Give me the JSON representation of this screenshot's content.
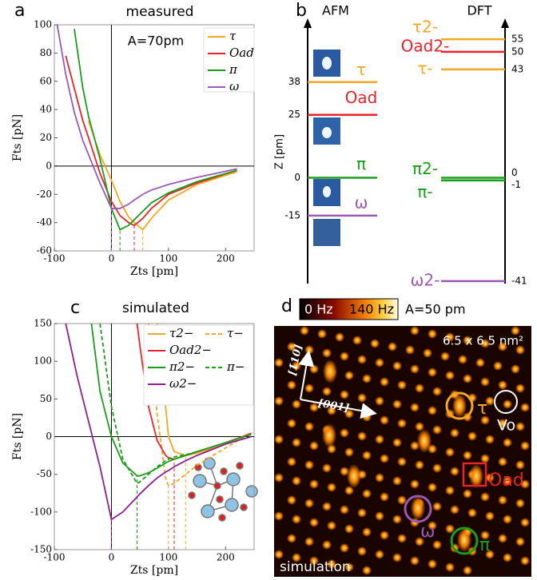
{
  "chart_data": [
    {
      "type": "line",
      "label": "a",
      "title": "measured",
      "annotation": "A=70pm",
      "xlabel": "Zts [pm]",
      "ylabel": "Fts [pN]",
      "x": [
        -95,
        -80,
        -65,
        -50,
        -40,
        -20,
        0,
        15,
        30,
        40,
        55,
        70,
        100,
        150,
        220
      ],
      "series": [
        {
          "name": "τ",
          "color": "#f5a623",
          "dash": false,
          "values": [
            null,
            null,
            null,
            null,
            32,
            8,
            -10,
            -25,
            -36,
            -40,
            -45,
            -37,
            -24,
            -13,
            -4
          ]
        },
        {
          "name": "Oad",
          "color": "#e8232a",
          "dash": false,
          "values": [
            null,
            78,
            55,
            32,
            20,
            -5,
            -25,
            -35,
            -40,
            -42,
            -37,
            -30,
            -20,
            -12,
            -3
          ]
        },
        {
          "name": "π",
          "color": "#1a9e1a",
          "dash": false,
          "values": [
            null,
            null,
            97,
            55,
            35,
            5,
            -30,
            -45,
            -42,
            -38,
            -32,
            -26,
            -19,
            -11,
            -3
          ]
        },
        {
          "name": "ω",
          "color": "#9b59b6",
          "dash": false,
          "values": [
            100,
            65,
            38,
            18,
            8,
            -12,
            -30,
            -30,
            -27,
            -24,
            -20,
            -17,
            -13,
            -8,
            -2
          ]
        }
      ],
      "xlim": [
        -100,
        250
      ],
      "ylim": [
        -60,
        100
      ],
      "xticks": [
        -100,
        0,
        100,
        200
      ],
      "yticks": [
        -60,
        -40,
        -20,
        0,
        20,
        40,
        60,
        80,
        100
      ],
      "zero_lines": true,
      "min_lines": true,
      "legend": "upper right"
    },
    {
      "type": "levels",
      "label": "b",
      "ylabel": "Z [pm]",
      "ylim": [
        -42,
        62
      ],
      "groups": [
        {
          "name": "AFM",
          "levels": [
            {
              "name": "τ",
              "color": "#f5a623",
              "value": 38
            },
            {
              "name": "Oad",
              "color": "#e8232a",
              "value": 25
            },
            {
              "name": "π",
              "color": "#1a9e1a",
              "value": 0
            },
            {
              "name": "ω",
              "color": "#9b59b6",
              "value": -15
            }
          ]
        },
        {
          "name": "DFT",
          "levels": [
            {
              "name": "τ2-",
              "color": "#f5a623",
              "value": 55
            },
            {
              "name": "Oad2-",
              "color": "#e8232a",
              "value": 50
            },
            {
              "name": "τ-",
              "color": "#f5a623",
              "value": 43
            },
            {
              "name": "π2-",
              "color": "#1a9e1a",
              "value": 0
            },
            {
              "name": "π-",
              "color": "#1a9e1a",
              "value": -1
            },
            {
              "name": "ω2-",
              "color": "#9b59b6",
              "value": -41
            }
          ]
        }
      ]
    },
    {
      "type": "line",
      "label": "c",
      "title": "simulated",
      "xlabel": "Zts [pm]",
      "ylabel": "Fts [pN]",
      "x": [
        -80,
        -60,
        -40,
        -35,
        -20,
        0,
        20,
        45,
        50,
        65,
        80,
        95,
        100,
        110,
        130,
        150,
        200,
        245
      ],
      "series": [
        {
          "name": "τ2−",
          "color": "#f5a623",
          "dash": false,
          "values": [
            null,
            null,
            null,
            null,
            null,
            null,
            null,
            null,
            null,
            null,
            150,
            40,
            0,
            -20,
            -25,
            -22,
            -10,
            5
          ]
        },
        {
          "name": "τ−",
          "color": "#f5a623",
          "dash": true,
          "values": [
            null,
            null,
            null,
            null,
            null,
            null,
            null,
            null,
            null,
            150,
            30,
            -55,
            -65,
            -62,
            -50,
            -38,
            -15,
            5
          ]
        },
        {
          "name": "Oad2−",
          "color": "#e8232a",
          "dash": false,
          "values": [
            null,
            null,
            null,
            null,
            null,
            null,
            null,
            150,
            120,
            40,
            -5,
            -25,
            -28,
            -30,
            -25,
            -20,
            -8,
            4
          ]
        },
        {
          "name": "π2−",
          "color": "#1a9e1a",
          "dash": false,
          "values": [
            null,
            null,
            null,
            150,
            60,
            0,
            -35,
            -52,
            -52,
            -48,
            -42,
            -35,
            -33,
            -30,
            -25,
            -20,
            -8,
            3
          ]
        },
        {
          "name": "π−",
          "color": "#1a9e1a",
          "dash": true,
          "values": [
            null,
            null,
            null,
            null,
            150,
            40,
            -30,
            -62,
            -60,
            -50,
            -40,
            -32,
            -30,
            -27,
            -24,
            -20,
            -8,
            3
          ]
        },
        {
          "name": "ω2−",
          "color": "#8e1f8e",
          "dash": false,
          "values": [
            150,
            80,
            20,
            5,
            -40,
            -110,
            -100,
            -80,
            -76,
            -65,
            -55,
            -47,
            -45,
            -40,
            -32,
            -25,
            -10,
            0
          ]
        }
      ],
      "xlim": [
        -100,
        250
      ],
      "ylim": [
        -150,
        150
      ],
      "xticks": [
        -100,
        0,
        100,
        200
      ],
      "yticks": [
        -150,
        -100,
        -50,
        0,
        50,
        100,
        150
      ],
      "zero_lines": true,
      "min_lines": true,
      "legend": "upper right"
    }
  ],
  "image_panel": {
    "label": "d",
    "colorbar_min": "0 Hz",
    "colorbar_max": "140 Hz",
    "amplitude": "A=50 pm",
    "size": "6.5 x 6.5 nm²",
    "direction_1": "[1̄10]",
    "direction_2": "[001]",
    "markers": [
      "τ",
      "Vo",
      "Oad",
      "ω",
      "π"
    ],
    "caption": "simulation"
  }
}
